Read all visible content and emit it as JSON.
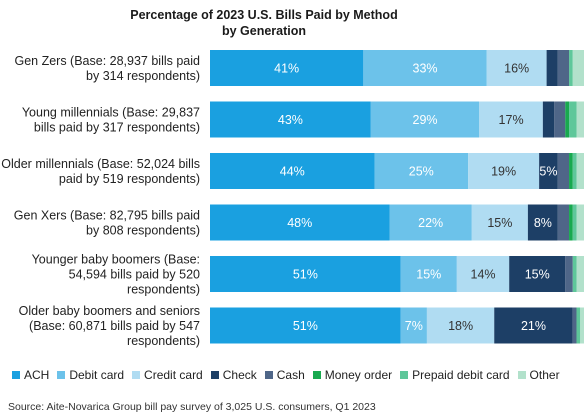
{
  "chart_data": {
    "type": "bar",
    "orientation": "horizontal",
    "stacked": true,
    "title": "Percentage of 2023 U.S. Bills Paid by Method by Generation",
    "categories": [
      "Gen Zers (Base: 28,937 bills paid by 314 respondents)",
      "Young millennials (Base: 29,837 bills paid by 317 respondents)",
      "Older millennials (Base: 52,024 bills paid by 519 respondents)",
      "Gen Xers (Base: 82,795 bills paid by 808 respondents)",
      "Younger baby boomers (Base: 54,594 bills paid by 520 respondents)",
      "Older baby boomers and seniors (Base: 60,871 bills paid by 547 respondents)"
    ],
    "category_lines": [
      [
        "Gen Zers (Base: 28,937 bills paid",
        "by 314 respondents)"
      ],
      [
        "Young millennials (Base: 29,837",
        "bills paid by 317 respondents)"
      ],
      [
        "Older millennials (Base: 52,024 bills",
        "paid by 519 respondents)"
      ],
      [
        "Gen Xers (Base: 82,795 bills paid",
        "by 808 respondents)"
      ],
      [
        "Younger baby boomers (Base:",
        "54,594 bills paid by 520",
        "respondents)"
      ],
      [
        "Older baby boomers and seniors",
        "(Base: 60,871 bills paid by 547",
        "respondents)"
      ]
    ],
    "series": [
      {
        "name": "ACH",
        "color": "#1aa0e0",
        "label_color": "#ffffff",
        "values": [
          41,
          43,
          44,
          48,
          51,
          51
        ],
        "data_labels": [
          "41%",
          "43%",
          "44%",
          "48%",
          "51%",
          "51%"
        ]
      },
      {
        "name": "Debit card",
        "color": "#6cc2ea",
        "label_color": "#ffffff",
        "values": [
          33,
          29,
          25,
          22,
          15,
          7
        ],
        "data_labels": [
          "33%",
          "29%",
          "25%",
          "22%",
          "15%",
          "7%"
        ]
      },
      {
        "name": "Credit card",
        "color": "#b0dcf2",
        "label_color": "#333333",
        "values": [
          16,
          17,
          19,
          15,
          14,
          18
        ],
        "data_labels": [
          "16%",
          "17%",
          "19%",
          "15%",
          "14%",
          "18%"
        ]
      },
      {
        "name": "Check",
        "color": "#1d3f66",
        "label_color": "#ffffff",
        "values": [
          3,
          3,
          5,
          8,
          15,
          21
        ],
        "data_labels": [
          "",
          "",
          "5%",
          "8%",
          "15%",
          "21%"
        ]
      },
      {
        "name": "Cash",
        "color": "#4f6688",
        "label_color": "#ffffff",
        "values": [
          3,
          3,
          3,
          3,
          2,
          1
        ],
        "data_labels": [
          "",
          "",
          "",
          "",
          "",
          ""
        ]
      },
      {
        "name": "Money order",
        "color": "#18a94f",
        "label_color": "#ffffff",
        "values": [
          0,
          1,
          1,
          1,
          0,
          0
        ],
        "data_labels": [
          "",
          "",
          "",
          "",
          "",
          ""
        ]
      },
      {
        "name": "Prepaid debit card",
        "color": "#5ec79a",
        "label_color": "#ffffff",
        "values": [
          1,
          2,
          1,
          1,
          1,
          1
        ],
        "data_labels": [
          "",
          "",
          "",
          "",
          "",
          ""
        ]
      },
      {
        "name": "Other",
        "color": "#b2e1cb",
        "label_color": "#333333",
        "values": [
          3,
          2,
          2,
          2,
          2,
          1
        ],
        "data_labels": [
          "",
          "",
          "",
          "",
          "",
          ""
        ]
      }
    ],
    "xlim": [
      0,
      100
    ],
    "legend_position": "bottom",
    "grid": false
  },
  "source": "Source: Aite-Novarica Group bill pay survey of 3,025 U.S. consumers, Q1 2023"
}
